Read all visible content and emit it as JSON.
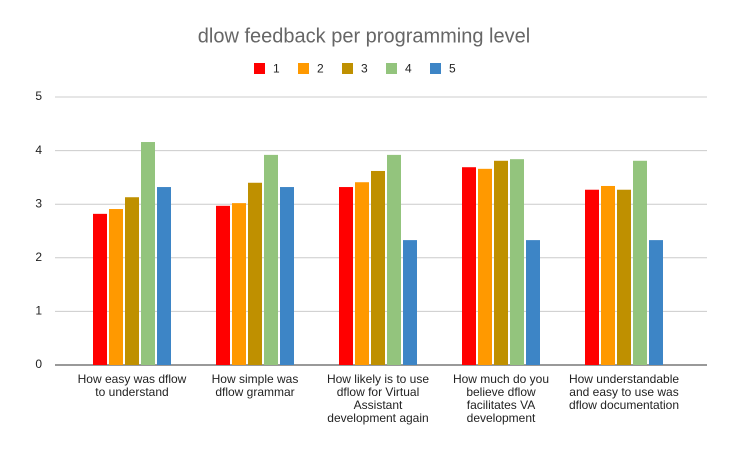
{
  "chart_data": {
    "type": "bar",
    "title": "dlow feedback per programming level",
    "categories": [
      "How easy was dflow to understand",
      "How simple was dflow grammar",
      "How likely is to use dflow for Virtual Assistant development again",
      "How much do you believe dflow facilitates VA development",
      "How understandable and easy to use was dflow documentation"
    ],
    "series": [
      {
        "name": "1",
        "color": "#ff0000",
        "values": [
          2.82,
          2.97,
          3.32,
          3.69,
          3.27
        ]
      },
      {
        "name": "2",
        "color": "#ff9900",
        "values": [
          2.91,
          3.02,
          3.41,
          3.66,
          3.34
        ]
      },
      {
        "name": "3",
        "color": "#bf9000",
        "values": [
          3.13,
          3.4,
          3.62,
          3.81,
          3.27
        ]
      },
      {
        "name": "4",
        "color": "#93c47d",
        "values": [
          4.16,
          3.92,
          3.92,
          3.84,
          3.81
        ]
      },
      {
        "name": "5",
        "color": "#3d85c6",
        "values": [
          3.32,
          3.32,
          2.33,
          2.33,
          2.33
        ]
      }
    ],
    "ylim": [
      0,
      5
    ],
    "yticks": [
      0,
      1,
      2,
      3,
      4,
      5
    ],
    "grid": true,
    "legend": "top"
  }
}
